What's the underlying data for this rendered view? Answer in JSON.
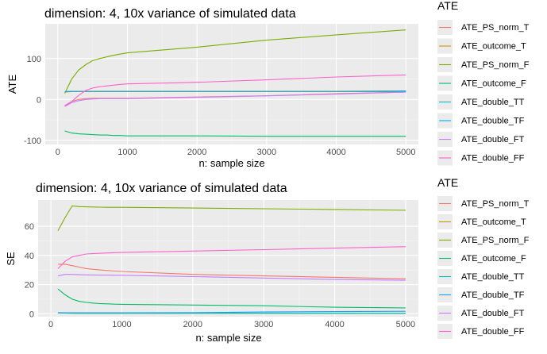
{
  "chart_data": [
    {
      "type": "line",
      "title": "dimension: 4, 10x variance of simulated data",
      "xlabel": "n: sample size",
      "ylabel": "ATE",
      "xlim": [
        -180,
        5180
      ],
      "ylim": [
        -110,
        185
      ],
      "x_ticks": [
        0,
        1000,
        2000,
        3000,
        4000,
        5000
      ],
      "y_ticks": [
        -100,
        0,
        100
      ],
      "grid": true,
      "legend_title": "ATE",
      "legend_position": "right",
      "x": [
        100,
        200,
        300,
        400,
        500,
        600,
        700,
        800,
        900,
        1000,
        2000,
        3000,
        4000,
        5000
      ],
      "series": [
        {
          "name": "ATE_PS_norm_T",
          "color": "#F8766D",
          "values": [
            -15,
            -5,
            0,
            2,
            3,
            3,
            3,
            3,
            3,
            3,
            6,
            9,
            14,
            18
          ]
        },
        {
          "name": "ATE_outcome_T",
          "color": "#CD9600",
          "values": [
            18,
            19,
            19,
            19,
            19,
            19,
            19,
            19,
            19,
            19,
            19,
            19,
            19,
            19
          ]
        },
        {
          "name": "ATE_PS_norm_F",
          "color": "#7CAE00",
          "values": [
            15,
            50,
            72,
            85,
            95,
            100,
            104,
            108,
            111,
            114,
            128,
            145,
            158,
            170
          ]
        },
        {
          "name": "ATE_outcome_F",
          "color": "#00BE67",
          "values": [
            -77,
            -82,
            -84,
            -85,
            -86,
            -87,
            -87,
            -88,
            -88,
            -89,
            -89,
            -90,
            -90,
            -90
          ]
        },
        {
          "name": "ATE_double_TT",
          "color": "#00BFC4",
          "values": [
            19,
            20,
            20,
            20,
            20,
            20,
            20,
            20,
            20,
            20,
            20,
            20,
            20,
            20
          ]
        },
        {
          "name": "ATE_double_TF",
          "color": "#00A9FF",
          "values": [
            19,
            20,
            20,
            20,
            20,
            20,
            20,
            20,
            20,
            20,
            20,
            20,
            20,
            21
          ]
        },
        {
          "name": "ATE_double_FT",
          "color": "#C77CFF",
          "values": [
            -17,
            -8,
            -3,
            0,
            1,
            2,
            2,
            2,
            2,
            2,
            5,
            9,
            13,
            18
          ]
        },
        {
          "name": "ATE_double_FF",
          "color": "#FF61CC",
          "values": [
            -15,
            -5,
            10,
            22,
            28,
            31,
            33,
            35,
            37,
            38,
            42,
            48,
            55,
            60
          ]
        }
      ]
    },
    {
      "type": "line",
      "title": "dimension: 4, 10x variance of simulated data",
      "xlabel": "n: sample size",
      "ylabel": "SE",
      "xlim": [
        -180,
        5180
      ],
      "ylim": [
        -2,
        78
      ],
      "x_ticks": [
        0,
        1000,
        2000,
        3000,
        4000,
        5000
      ],
      "y_ticks": [
        0,
        20,
        40,
        60
      ],
      "grid": true,
      "legend_title": "ATE",
      "legend_position": "right",
      "x": [
        100,
        200,
        300,
        400,
        500,
        600,
        700,
        800,
        900,
        1000,
        2000,
        3000,
        4000,
        5000
      ],
      "series": [
        {
          "name": "ATE_PS_norm_T",
          "color": "#F8766D",
          "values": [
            34,
            34,
            33,
            32,
            31,
            30.5,
            30,
            29.7,
            29.3,
            29,
            27,
            26,
            25,
            24
          ]
        },
        {
          "name": "ATE_outcome_T",
          "color": "#CD9600",
          "values": [
            0.5,
            0.4,
            0.3,
            0.3,
            0.3,
            0.3,
            0.3,
            0.3,
            0.3,
            0.3,
            0.3,
            0.3,
            0.3,
            0.3
          ]
        },
        {
          "name": "ATE_PS_norm_F",
          "color": "#7CAE00",
          "values": [
            57,
            66,
            74,
            73.5,
            73.3,
            73.2,
            73.1,
            73,
            73,
            73,
            72.5,
            72,
            71.5,
            71
          ]
        },
        {
          "name": "ATE_outcome_F",
          "color": "#00BE67",
          "values": [
            17,
            13,
            10,
            8.5,
            7.8,
            7.3,
            7,
            6.8,
            6.6,
            6.5,
            6,
            5.5,
            4.5,
            4
          ]
        },
        {
          "name": "ATE_double_TT",
          "color": "#00BFC4",
          "values": [
            0.6,
            0.5,
            0.5,
            0.4,
            0.4,
            0.4,
            0.4,
            0.4,
            0.4,
            0.4,
            0.4,
            0.4,
            0.4,
            0.4
          ]
        },
        {
          "name": "ATE_double_TF",
          "color": "#00A9FF",
          "values": [
            0.8,
            0.7,
            0.7,
            0.7,
            0.7,
            0.7,
            0.7,
            0.7,
            0.7,
            0.7,
            0.8,
            1.2,
            1.5,
            1.7
          ]
        },
        {
          "name": "ATE_double_FT",
          "color": "#C77CFF",
          "values": [
            26,
            27,
            27,
            26.8,
            26.7,
            26.6,
            26.5,
            26.5,
            26.4,
            26.4,
            25.5,
            24.5,
            23.5,
            23
          ]
        },
        {
          "name": "ATE_double_FF",
          "color": "#FF61CC",
          "values": [
            31,
            36,
            39,
            40,
            41,
            41.3,
            41.5,
            41.7,
            41.9,
            42,
            43,
            44,
            45,
            46
          ]
        }
      ]
    }
  ]
}
